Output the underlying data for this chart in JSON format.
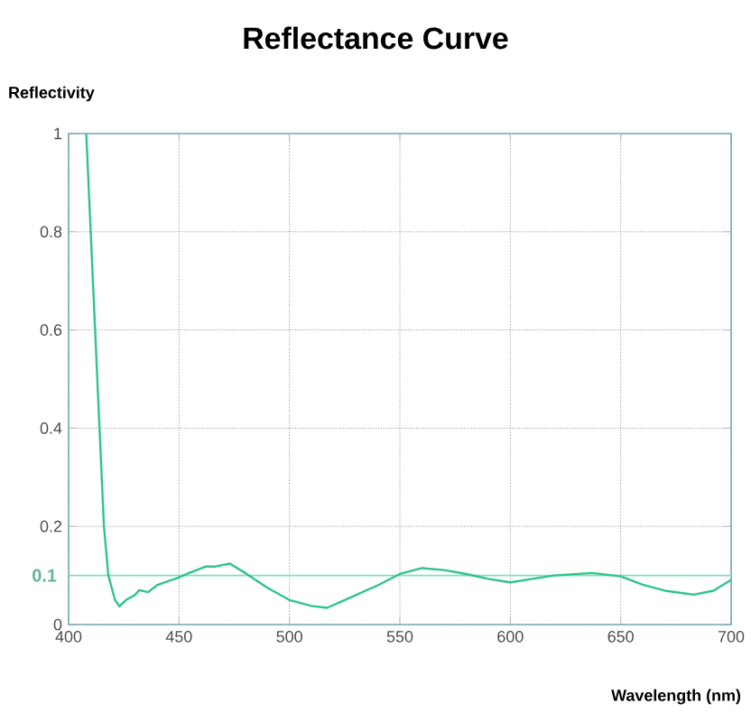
{
  "chart_data": {
    "type": "line",
    "title": "Reflectance Curve",
    "xlabel": "Wavelength (nm)",
    "ylabel": "Reflectivity",
    "x": [
      408,
      410,
      412,
      414,
      416,
      418,
      421,
      423,
      426,
      430,
      432,
      436,
      440,
      446,
      450,
      455,
      462,
      466,
      473,
      480,
      490,
      500,
      510,
      517,
      525,
      540,
      550,
      560,
      570,
      580,
      590,
      600,
      610,
      620,
      637,
      650,
      660,
      670,
      683,
      692,
      700
    ],
    "series": [
      {
        "color": "#2ec48a",
        "values": [
          1.0,
          0.8,
          0.6,
          0.4,
          0.2,
          0.1,
          0.05,
          0.037,
          0.05,
          0.06,
          0.07,
          0.066,
          0.08,
          0.09,
          0.096,
          0.106,
          0.118,
          0.118,
          0.124,
          0.105,
          0.075,
          0.05,
          0.038,
          0.034,
          0.05,
          0.08,
          0.103,
          0.115,
          0.111,
          0.103,
          0.093,
          0.086,
          0.093,
          0.1,
          0.105,
          0.098,
          0.081,
          0.069,
          0.061,
          0.069,
          0.091
        ]
      }
    ],
    "xlim": [
      400,
      700
    ],
    "ylim": [
      0,
      1
    ],
    "xticks": [
      400,
      450,
      500,
      550,
      600,
      650,
      700
    ],
    "yticks": [
      0,
      0.2,
      0.4,
      0.6,
      0.8,
      1
    ],
    "ref_lines": [
      {
        "axis": "y",
        "value": 0.1,
        "label": "0.1",
        "color": "#7fe0bf"
      }
    ],
    "grid": true,
    "marker": "none",
    "line_style": "solid"
  }
}
